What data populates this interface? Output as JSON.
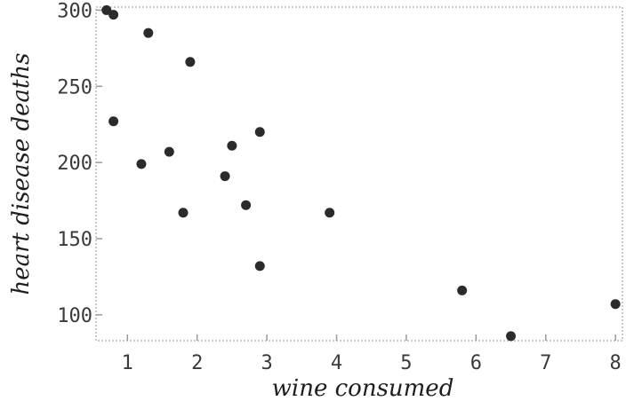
{
  "chart_data": {
    "type": "scatter",
    "title": "",
    "xlabel": "wine consumed",
    "ylabel": "heart disease deaths",
    "xlim": [
      0.55,
      8.1
    ],
    "ylim": [
      83,
      302
    ],
    "xticks": [
      1,
      2,
      3,
      4,
      5,
      6,
      7,
      8
    ],
    "yticks": [
      100,
      150,
      200,
      250,
      300
    ],
    "grid": false,
    "legend": "none",
    "point_color": "#2b2b2b",
    "points": [
      {
        "x": 0.7,
        "y": 300
      },
      {
        "x": 0.8,
        "y": 297
      },
      {
        "x": 0.8,
        "y": 227
      },
      {
        "x": 1.2,
        "y": 199
      },
      {
        "x": 1.3,
        "y": 285
      },
      {
        "x": 1.6,
        "y": 207
      },
      {
        "x": 1.8,
        "y": 167
      },
      {
        "x": 1.9,
        "y": 266
      },
      {
        "x": 2.4,
        "y": 191
      },
      {
        "x": 2.5,
        "y": 211
      },
      {
        "x": 2.7,
        "y": 172
      },
      {
        "x": 2.9,
        "y": 220
      },
      {
        "x": 2.9,
        "y": 132
      },
      {
        "x": 3.9,
        "y": 167
      },
      {
        "x": 5.8,
        "y": 116
      },
      {
        "x": 6.5,
        "y": 86
      },
      {
        "x": 8.0,
        "y": 107
      }
    ]
  }
}
